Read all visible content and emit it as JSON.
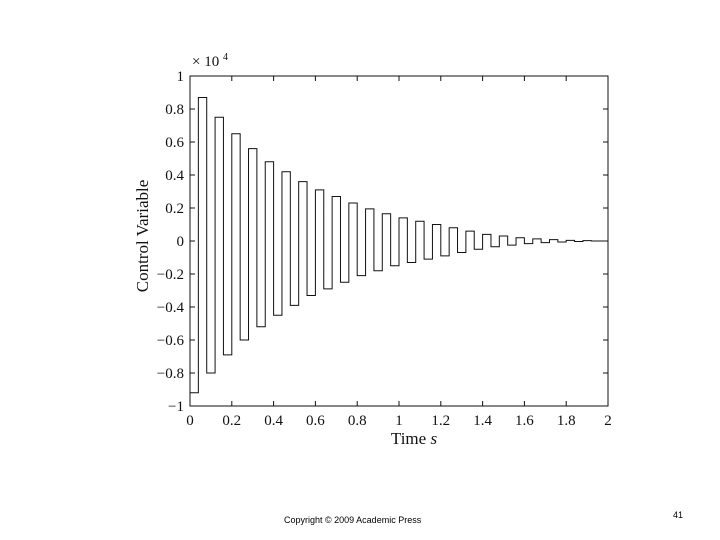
{
  "chart_data": {
    "type": "line",
    "title": "",
    "xlabel_main": "Time",
    "xlabel_unit": "s",
    "ylabel": "Control Variable",
    "y_multiplier_base": "× 10",
    "y_multiplier_exp": "4",
    "xlim": [
      0,
      2
    ],
    "ylim": [
      -1,
      1
    ],
    "x_ticks": [
      "0",
      "0.2",
      "0.4",
      "0.6",
      "0.8",
      "1",
      "1.2",
      "1.4",
      "1.6",
      "1.8",
      "2"
    ],
    "y_ticks": [
      "−1",
      "−0.8",
      "−0.6",
      "−0.4",
      "−0.2",
      "0",
      "0.2",
      "0.4",
      "0.6",
      "0.8",
      "1"
    ],
    "grid": false,
    "sample_period": 0.04,
    "series": [
      {
        "style": "zero-order-hold",
        "x": [
          0,
          0.04,
          0.08,
          0.12,
          0.16,
          0.2,
          0.24,
          0.28,
          0.32,
          0.36,
          0.4,
          0.44,
          0.48,
          0.52,
          0.56,
          0.6,
          0.64,
          0.68,
          0.72,
          0.76,
          0.8,
          0.84,
          0.88,
          0.92,
          0.96,
          1.0,
          1.04,
          1.08,
          1.12,
          1.16,
          1.2,
          1.24,
          1.28,
          1.32,
          1.36,
          1.4,
          1.44,
          1.48,
          1.52,
          1.56,
          1.6,
          1.64,
          1.68,
          1.72,
          1.76,
          1.8,
          1.84,
          1.88,
          1.92,
          1.96
        ],
        "y": [
          -0.92,
          0.87,
          -0.8,
          0.75,
          -0.69,
          0.65,
          -0.6,
          0.56,
          -0.52,
          0.48,
          -0.45,
          0.42,
          -0.39,
          0.36,
          -0.33,
          0.31,
          -0.29,
          0.27,
          -0.25,
          0.23,
          -0.21,
          0.195,
          -0.18,
          0.165,
          -0.15,
          0.14,
          -0.13,
          0.12,
          -0.11,
          0.1,
          -0.09,
          0.08,
          -0.07,
          0.06,
          -0.05,
          0.04,
          -0.035,
          0.03,
          -0.025,
          0.02,
          -0.016,
          0.013,
          -0.01,
          0.008,
          -0.006,
          0.004,
          -0.003,
          0.002,
          0,
          0
        ]
      }
    ]
  },
  "footer": {
    "copyright": "Copyright © 2009 Academic Press",
    "slide_number": "41"
  }
}
